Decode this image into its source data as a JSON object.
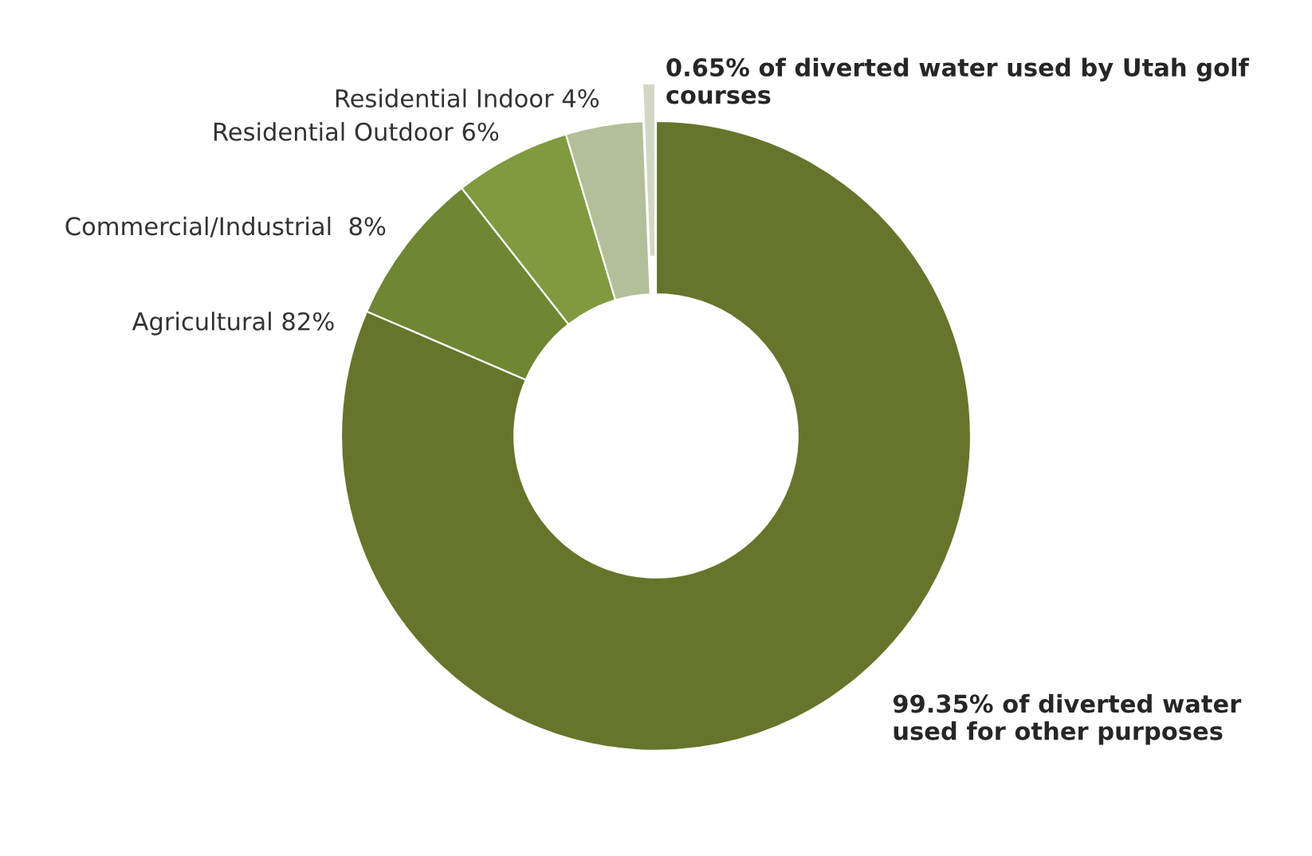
{
  "chart_data": {
    "type": "donut",
    "categories": [
      "Agricultural 82%",
      "Commercial/Industrial  8%",
      "Residential Outdoor 6%",
      "Residential Indoor 4%",
      "0.65% of diverted water used by Utah golf courses"
    ],
    "values": [
      82,
      8,
      6,
      4,
      0.65
    ],
    "colors": [
      "#66752b",
      "#6f8633",
      "#7f9a3f",
      "#b3bf98",
      "#d3d8c4"
    ],
    "annotations": [
      "99.35% of diverted water used for other purposes"
    ]
  }
}
